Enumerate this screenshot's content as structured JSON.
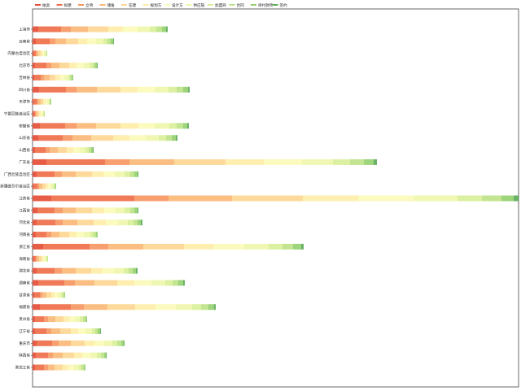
{
  "chart_data": {
    "type": "stacked-barh",
    "categories": [
      "上海市",
      "云南省",
      "内蒙古自治区",
      "北京市",
      "吉林省",
      "四川省",
      "天津市",
      "宁夏回族自治区",
      "安徽省",
      "山东省",
      "山西省",
      "广东省",
      "广西壮族自治区",
      "新疆维吾尔自治区",
      "江苏省",
      "江西省",
      "河北省",
      "河南省",
      "浙江省",
      "海南省",
      "湖北省",
      "湖南省",
      "甘肃省",
      "福建省",
      "贵州省",
      "辽宁省",
      "重庆市",
      "陕西省",
      "黑龙江省"
    ],
    "xlim": [
      0,
      597
    ],
    "series": [
      {
        "name": "拍卖",
        "color": "#e34a33",
        "values": [
          7,
          4,
          1,
          3,
          2,
          8,
          1,
          1,
          9,
          7,
          3,
          17,
          5,
          1,
          23,
          6,
          5,
          4,
          13,
          1,
          5,
          7,
          2,
          9,
          3,
          3,
          5,
          4,
          3
        ]
      },
      {
        "name": "拟建",
        "color": "#ee6a45",
        "values": [
          28,
          17,
          3,
          14,
          8,
          33,
          4,
          2,
          31,
          30,
          13,
          72,
          22,
          5,
          102,
          21,
          23,
          13,
          57,
          3,
          22,
          32,
          7,
          38,
          11,
          14,
          19,
          15,
          11
        ]
      },
      {
        "name": "立项",
        "color": "#f6955f",
        "values": [
          12,
          7,
          1,
          6,
          4,
          13,
          2,
          1,
          14,
          12,
          5,
          30,
          9,
          2,
          42,
          10,
          9,
          6,
          23,
          1,
          9,
          13,
          3,
          16,
          5,
          6,
          8,
          6,
          5
        ]
      },
      {
        "name": "储备",
        "color": "#fbb774",
        "values": [
          21,
          13,
          2,
          10,
          7,
          25,
          3,
          2,
          24,
          23,
          10,
          55,
          17,
          4,
          78,
          16,
          18,
          10,
          43,
          3,
          17,
          24,
          5,
          29,
          9,
          11,
          15,
          12,
          8
        ]
      },
      {
        "name": "在建",
        "color": "#fdd690",
        "values": [
          25,
          15,
          3,
          12,
          7,
          29,
          3,
          2,
          30,
          27,
          11,
          63,
          20,
          4,
          87,
          20,
          20,
          12,
          50,
          3,
          19,
          28,
          6,
          34,
          10,
          13,
          17,
          14,
          10
        ]
      },
      {
        "name": "规划方",
        "color": "#feeda8",
        "values": [
          18,
          11,
          2,
          9,
          6,
          21,
          3,
          2,
          22,
          20,
          8,
          47,
          14,
          3,
          68,
          15,
          15,
          9,
          37,
          2,
          14,
          21,
          4,
          25,
          7,
          9,
          12,
          10,
          7
        ]
      },
      {
        "name": "设计方",
        "color": "#fbf9b8",
        "values": [
          18,
          11,
          2,
          9,
          5,
          21,
          2,
          2,
          20,
          20,
          8,
          47,
          14,
          3,
          68,
          14,
          15,
          9,
          37,
          2,
          14,
          21,
          4,
          25,
          7,
          9,
          12,
          10,
          7
        ]
      },
      {
        "name": "供应链",
        "color": "#eef6ab",
        "values": [
          15,
          9,
          2,
          7,
          5,
          17,
          2,
          1,
          18,
          16,
          7,
          38,
          12,
          3,
          54,
          11,
          12,
          8,
          30,
          2,
          12,
          17,
          4,
          20,
          6,
          8,
          10,
          8,
          6
        ]
      },
      {
        "name": "加盟商",
        "color": "#d8ee97",
        "values": [
          8,
          5,
          1,
          4,
          2,
          10,
          1,
          1,
          9,
          9,
          4,
          21,
          7,
          2,
          30,
          7,
          7,
          4,
          17,
          1,
          6,
          9,
          2,
          11,
          4,
          4,
          6,
          5,
          3
        ]
      },
      {
        "name": "合同",
        "color": "#bce285",
        "values": [
          7,
          4,
          1,
          3,
          2,
          8,
          1,
          1,
          8,
          7,
          3,
          17,
          5,
          1,
          24,
          5,
          5,
          3,
          13,
          1,
          5,
          7,
          2,
          9,
          3,
          3,
          5,
          4,
          3
        ]
      },
      {
        "name": "待付款项",
        "color": "#94cf6e",
        "values": [
          5,
          3,
          0,
          2,
          2,
          6,
          1,
          0,
          5,
          5,
          2,
          12,
          4,
          1,
          15,
          4,
          4,
          2,
          10,
          0,
          4,
          6,
          1,
          7,
          2,
          3,
          3,
          2,
          2
        ]
      },
      {
        "name": "签约",
        "color": "#5aab55",
        "values": [
          2,
          1,
          0,
          1,
          0,
          2,
          0,
          0,
          2,
          2,
          1,
          4,
          1,
          0,
          6,
          1,
          2,
          0,
          3,
          0,
          2,
          2,
          0,
          2,
          0,
          1,
          1,
          1,
          0
        ]
      }
    ]
  }
}
